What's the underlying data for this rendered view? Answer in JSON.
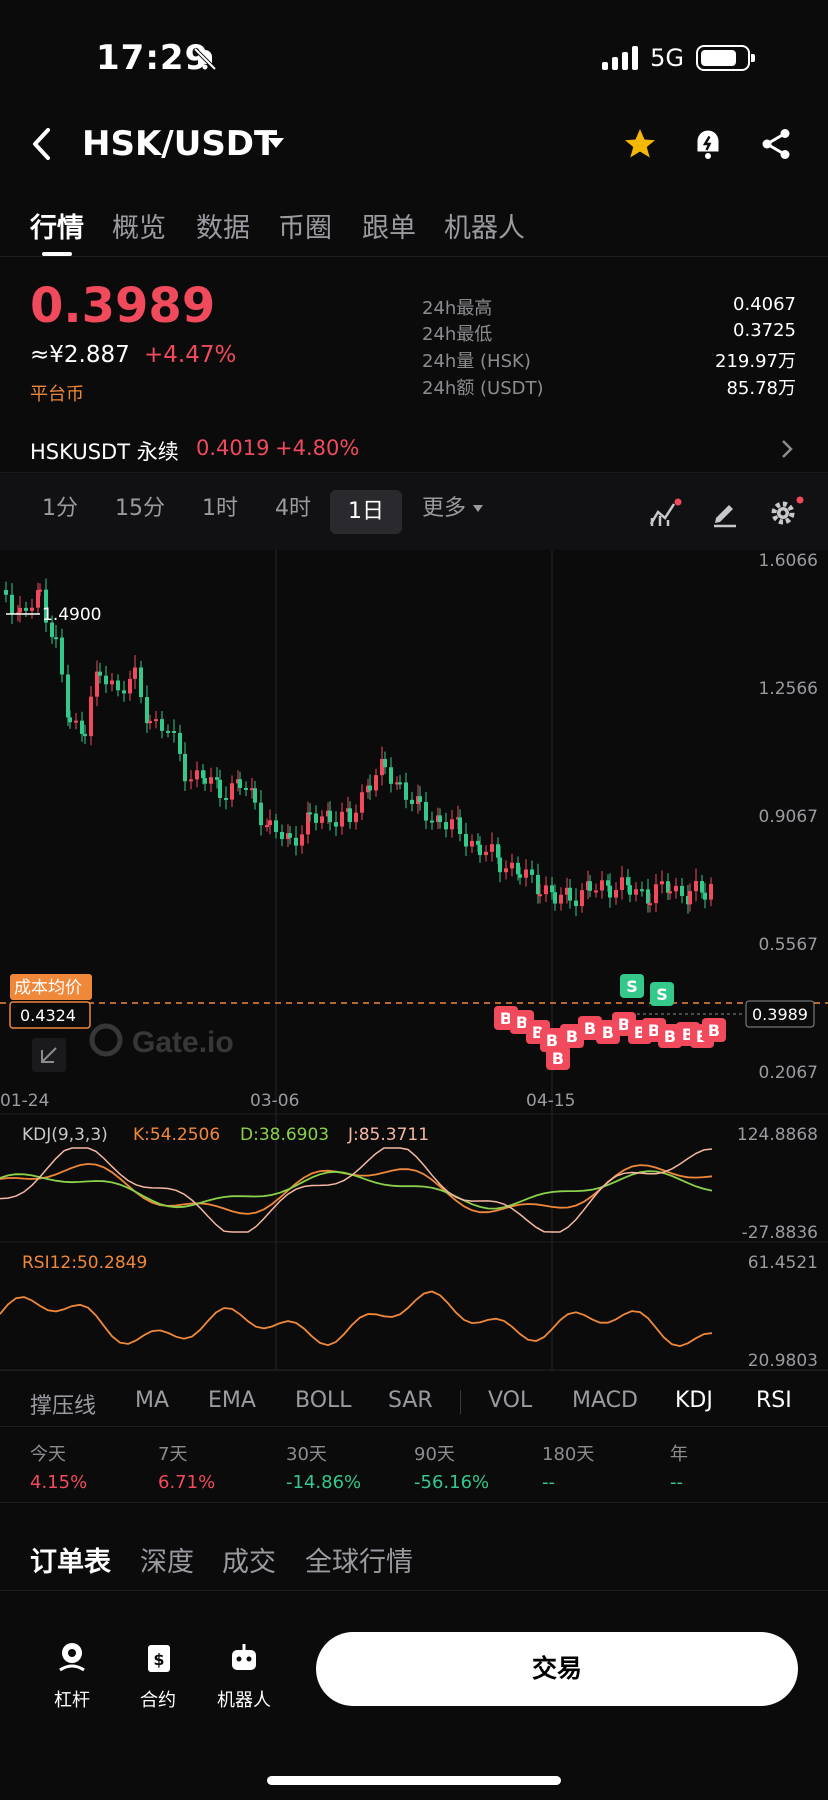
{
  "status_bar": {
    "time": "17:29",
    "network": "5G"
  },
  "header": {
    "pair": "HSK/USDT"
  },
  "tabs": [
    "行情",
    "概览",
    "数据",
    "币圈",
    "跟单",
    "机器人"
  ],
  "ticker": {
    "price": "0.3989",
    "cny": "≈¥2.887",
    "change": "+4.47%",
    "platform_label": "平台币",
    "stats": [
      {
        "label": "24h最高",
        "value": "0.4067"
      },
      {
        "label": "24h最低",
        "value": "0.3725"
      },
      {
        "label": "24h量 (HSK)",
        "value": "219.97万"
      },
      {
        "label": "24h额 (USDT)",
        "value": "85.78万"
      }
    ]
  },
  "perpetual": {
    "name": "HSKUSDT 永续",
    "price": "0.4019",
    "change": "+4.80%"
  },
  "intervals": [
    "1分",
    "15分",
    "1时",
    "4时",
    "1日",
    "更多"
  ],
  "active_interval": "1日",
  "chart_labels": {
    "y_ticks": [
      "1.6066",
      "1.2566",
      "0.9067",
      "0.5567",
      "0.2067"
    ],
    "x_ticks": [
      "01-24",
      "03-06",
      "04-15"
    ],
    "high_marker": "1.4900",
    "avg_cost_label": "成本均价",
    "avg_cost_value": "0.4324",
    "current_price_tag": "0.3989",
    "watermark": "Gate.io"
  },
  "kdj": {
    "title": "KDJ(9,3,3)",
    "k": "K:54.2506",
    "d": "D:38.6903",
    "j": "J:85.3711",
    "max": "124.8868",
    "min": "-27.8836"
  },
  "rsi": {
    "title": "RSI12:50.2849",
    "max": "61.4521",
    "min": "20.9803"
  },
  "indicators": [
    "撑压线",
    "MA",
    "EMA",
    "BOLL",
    "SAR",
    "VOL",
    "MACD",
    "KDJ",
    "RSI"
  ],
  "performance": [
    {
      "label": "今天",
      "value": "4.15%"
    },
    {
      "label": "7天",
      "value": "6.71%"
    },
    {
      "label": "30天",
      "value": "-14.86%"
    },
    {
      "label": "90天",
      "value": "-56.16%"
    },
    {
      "label": "180天",
      "value": "--"
    },
    {
      "label": "年",
      "value": "--"
    }
  ],
  "order_tabs": [
    "订单表",
    "深度",
    "成交",
    "全球行情"
  ],
  "bottom_nav": [
    {
      "label": "杠杆",
      "icon": "leverage-icon"
    },
    {
      "label": "合约",
      "icon": "contract-icon"
    },
    {
      "label": "机器人",
      "icon": "robot-icon"
    }
  ],
  "trade_button": "交易",
  "colors": {
    "up": "#f04a5c",
    "down": "#34c88a",
    "accent": "#f0883a",
    "star": "#f5b800"
  }
}
